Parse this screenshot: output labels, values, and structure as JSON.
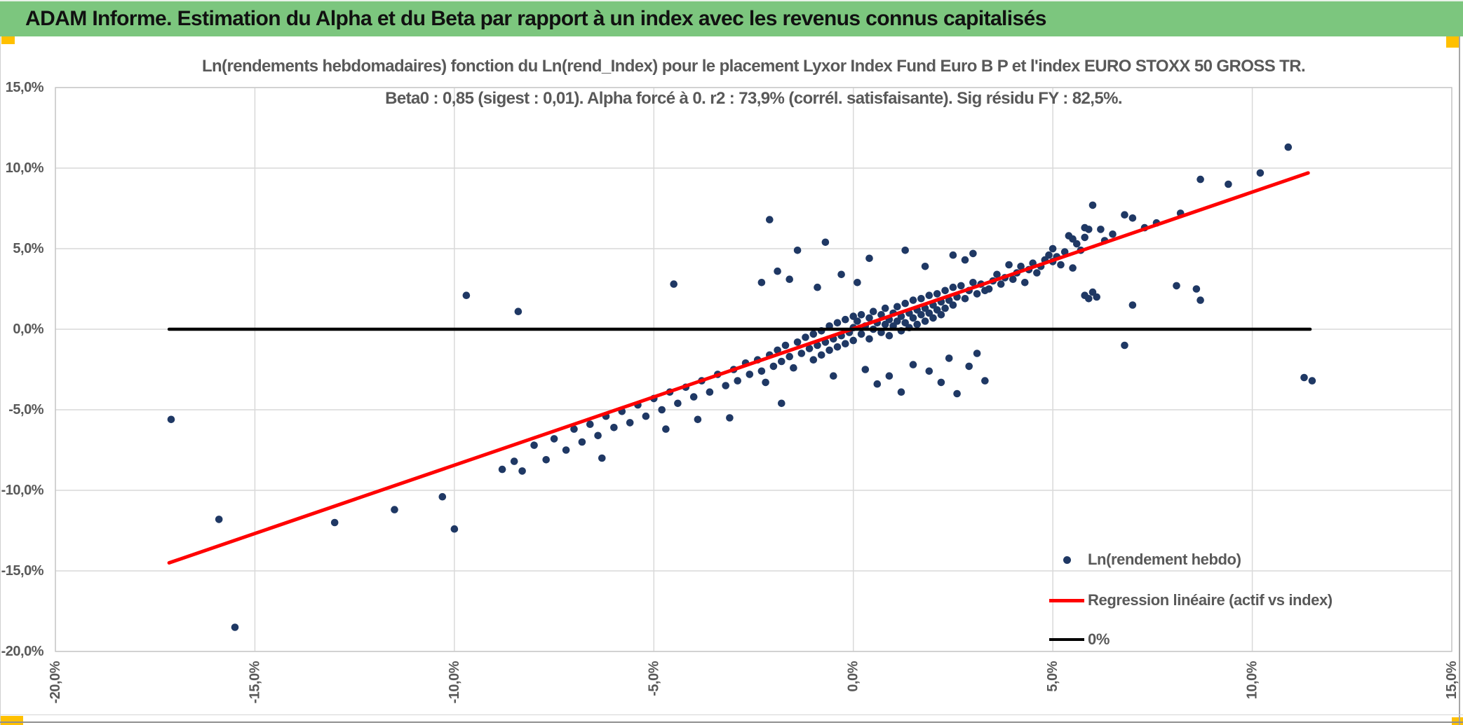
{
  "window": {
    "header_title": "ADAM Informe. Estimation du Alpha et du Beta par rapport à un index avec les revenus connus capitalisés"
  },
  "theme": {
    "header_green": "#7CC67E",
    "accent_orange": "#FFC000",
    "text_gray": "#595959",
    "grid_gray": "#D9D9D9",
    "border_gray": "#C9C9C9",
    "window_edge_gray": "#8F8F8F"
  },
  "chart_data": {
    "type": "scatter",
    "title_line1": "Ln(rendements hebdomadaires) fonction du Ln(rend_Index) pour le placement Lyxor Index Fund Euro B P et l'index EURO STOXX 50 GROSS TR.",
    "title_line2": "Beta0 : 0,85 (sigest : 0,01). Alpha forcé à 0. r2 : 73,9% (corrél. satisfaisante). Sig résidu FY : 82,5%.",
    "stats": {
      "beta0": "0,85",
      "sigest": "0,01",
      "alpha": "0",
      "r2": "73,9%",
      "sig_residu_fy": "82,5%"
    },
    "x_axis": {
      "min": -20,
      "max": 15,
      "step": 5,
      "unit": "%",
      "tick_values": [
        -20,
        -15,
        -10,
        -5,
        0,
        5,
        10,
        15
      ],
      "tick_labels": [
        "-20,0%",
        "-15,0%",
        "-10,0%",
        "-5,0%",
        "0,0%",
        "5,0%",
        "10,0%",
        "15,0%"
      ]
    },
    "y_axis": {
      "min": -20,
      "max": 15,
      "step": 5,
      "unit": "%",
      "tick_values": [
        15,
        10,
        5,
        0,
        -5,
        -10,
        -15,
        -20
      ],
      "tick_labels": [
        "15,0%",
        "10,0%",
        "5,0%",
        "0,0%",
        "-5,0%",
        "-10,0%",
        "-15,0%",
        "-20,0%"
      ]
    },
    "grid": true,
    "legend_position": "inside-bottom-right",
    "series": [
      {
        "name": "Ln(rendement hebdo)",
        "type": "scatter",
        "color": "#1F3864",
        "points": [
          [
            -17.1,
            -5.6
          ],
          [
            -15.9,
            -11.8
          ],
          [
            -15.5,
            -18.5
          ],
          [
            -13.0,
            -12.0
          ],
          [
            -11.5,
            -11.2
          ],
          [
            -10.3,
            -10.4
          ],
          [
            -10.0,
            -12.4
          ],
          [
            -9.7,
            2.1
          ],
          [
            -8.4,
            1.1
          ],
          [
            -8.8,
            -8.7
          ],
          [
            -8.5,
            -8.2
          ],
          [
            -8.3,
            -8.8
          ],
          [
            -8.0,
            -7.2
          ],
          [
            -7.7,
            -8.1
          ],
          [
            -7.5,
            -6.8
          ],
          [
            -7.2,
            -7.5
          ],
          [
            -7.0,
            -6.2
          ],
          [
            -6.8,
            -7.0
          ],
          [
            -6.6,
            -5.9
          ],
          [
            -6.4,
            -6.6
          ],
          [
            -6.3,
            -8.0
          ],
          [
            -6.2,
            -5.4
          ],
          [
            -6.0,
            -6.1
          ],
          [
            -5.8,
            -5.1
          ],
          [
            -5.6,
            -5.8
          ],
          [
            -5.4,
            -4.7
          ],
          [
            -5.2,
            -5.4
          ],
          [
            -5.0,
            -4.3
          ],
          [
            -4.8,
            -5.0
          ],
          [
            -4.7,
            -6.2
          ],
          [
            -4.6,
            -3.9
          ],
          [
            -4.5,
            2.8
          ],
          [
            -4.4,
            -4.6
          ],
          [
            -4.2,
            -3.6
          ],
          [
            -4.0,
            -4.2
          ],
          [
            -3.9,
            -5.6
          ],
          [
            -3.8,
            -3.2
          ],
          [
            -3.6,
            -3.9
          ],
          [
            -3.4,
            -2.8
          ],
          [
            -3.2,
            -3.5
          ],
          [
            -3.1,
            -5.5
          ],
          [
            -3.0,
            -2.5
          ],
          [
            -2.9,
            -3.2
          ],
          [
            -2.7,
            -2.1
          ],
          [
            -2.6,
            -2.8
          ],
          [
            -2.4,
            -1.9
          ],
          [
            -2.3,
            -2.6
          ],
          [
            -2.2,
            -3.3
          ],
          [
            -2.1,
            -1.6
          ],
          [
            -2.0,
            -2.3
          ],
          [
            -1.9,
            -1.3
          ],
          [
            -1.8,
            -4.6
          ],
          [
            -1.8,
            -2.0
          ],
          [
            -1.7,
            -1.0
          ],
          [
            -1.6,
            -1.7
          ],
          [
            -1.5,
            -2.4
          ],
          [
            -1.4,
            -0.8
          ],
          [
            -1.3,
            -1.5
          ],
          [
            -1.2,
            -0.5
          ],
          [
            -1.1,
            -1.2
          ],
          [
            -1.0,
            -1.9
          ],
          [
            -1.0,
            -0.3
          ],
          [
            -0.9,
            -1.0
          ],
          [
            -0.8,
            -0.1
          ],
          [
            -0.8,
            -1.6
          ],
          [
            -0.7,
            -0.8
          ],
          [
            -0.6,
            0.2
          ],
          [
            -0.6,
            -1.3
          ],
          [
            -0.5,
            -0.6
          ],
          [
            -0.4,
            0.4
          ],
          [
            -0.4,
            -1.1
          ],
          [
            -0.3,
            -0.4
          ],
          [
            -0.2,
            0.6
          ],
          [
            -0.2,
            -0.9
          ],
          [
            -0.1,
            -0.2
          ],
          [
            0.0,
            0.8
          ],
          [
            0.0,
            -0.7
          ],
          [
            0.0,
            0.1
          ],
          [
            -2.1,
            6.8
          ],
          [
            -0.7,
            5.4
          ],
          [
            -1.4,
            4.9
          ],
          [
            -1.9,
            3.6
          ],
          [
            -1.6,
            3.1
          ],
          [
            -2.3,
            2.9
          ],
          [
            0.4,
            4.4
          ],
          [
            1.3,
            4.9
          ],
          [
            2.5,
            4.6
          ],
          [
            2.8,
            4.3
          ],
          [
            3.0,
            4.7
          ],
          [
            -0.3,
            3.4
          ],
          [
            0.1,
            2.9
          ],
          [
            -0.9,
            2.6
          ],
          [
            1.8,
            3.9
          ],
          [
            0.6,
            -3.4
          ],
          [
            1.2,
            -3.9
          ],
          [
            2.2,
            -3.3
          ],
          [
            2.6,
            -4.0
          ],
          [
            3.3,
            -3.2
          ],
          [
            1.9,
            -2.6
          ],
          [
            2.9,
            -2.3
          ],
          [
            0.9,
            -2.9
          ],
          [
            1.5,
            -2.2
          ],
          [
            2.4,
            -1.8
          ],
          [
            3.1,
            -1.5
          ],
          [
            0.3,
            -2.5
          ],
          [
            -0.5,
            -2.9
          ],
          [
            0.1,
            0.5
          ],
          [
            0.2,
            -0.3
          ],
          [
            0.2,
            0.9
          ],
          [
            0.3,
            0.2
          ],
          [
            0.4,
            -0.6
          ],
          [
            0.4,
            0.7
          ],
          [
            0.5,
            0.0
          ],
          [
            0.5,
            1.1
          ],
          [
            0.6,
            0.4
          ],
          [
            0.7,
            -0.2
          ],
          [
            0.7,
            0.9
          ],
          [
            0.8,
            0.3
          ],
          [
            0.8,
            1.3
          ],
          [
            0.9,
            0.6
          ],
          [
            0.9,
            -0.4
          ],
          [
            1.0,
            1.0
          ],
          [
            1.0,
            0.2
          ],
          [
            1.1,
            1.4
          ],
          [
            1.1,
            0.5
          ],
          [
            1.2,
            -0.1
          ],
          [
            1.2,
            0.8
          ],
          [
            1.3,
            1.6
          ],
          [
            1.3,
            0.4
          ],
          [
            1.4,
            1.0
          ],
          [
            1.4,
            0.1
          ],
          [
            1.5,
            1.8
          ],
          [
            1.5,
            0.7
          ],
          [
            1.6,
            1.2
          ],
          [
            1.6,
            0.3
          ],
          [
            1.7,
            1.9
          ],
          [
            1.7,
            0.9
          ],
          [
            1.8,
            1.3
          ],
          [
            1.8,
            0.5
          ],
          [
            1.9,
            2.1
          ],
          [
            1.9,
            1.0
          ],
          [
            2.0,
            1.5
          ],
          [
            2.0,
            0.7
          ],
          [
            2.1,
            2.2
          ],
          [
            2.1,
            1.2
          ],
          [
            2.2,
            1.7
          ],
          [
            2.2,
            0.9
          ],
          [
            2.3,
            2.4
          ],
          [
            2.3,
            1.3
          ],
          [
            2.4,
            1.8
          ],
          [
            2.5,
            2.6
          ],
          [
            2.5,
            1.5
          ],
          [
            2.6,
            2.0
          ],
          [
            2.7,
            2.7
          ],
          [
            2.8,
            1.9
          ],
          [
            2.9,
            2.4
          ],
          [
            3.0,
            2.9
          ],
          [
            3.1,
            2.2
          ],
          [
            3.2,
            2.8
          ],
          [
            3.3,
            2.4
          ],
          [
            3.4,
            2.5
          ],
          [
            3.5,
            3.0
          ],
          [
            3.6,
            3.4
          ],
          [
            3.7,
            2.8
          ],
          [
            3.8,
            3.2
          ],
          [
            3.9,
            4.0
          ],
          [
            4.0,
            3.1
          ],
          [
            4.1,
            3.5
          ],
          [
            4.2,
            3.9
          ],
          [
            4.3,
            2.9
          ],
          [
            4.4,
            3.7
          ],
          [
            4.5,
            4.1
          ],
          [
            4.6,
            3.5
          ],
          [
            4.7,
            3.9
          ],
          [
            4.8,
            4.3
          ],
          [
            4.9,
            4.6
          ],
          [
            5.0,
            4.2
          ],
          [
            5.1,
            4.5
          ],
          [
            5.2,
            4.0
          ],
          [
            5.0,
            5.0
          ],
          [
            5.4,
            5.8
          ],
          [
            5.5,
            5.6
          ],
          [
            5.6,
            5.3
          ],
          [
            5.8,
            6.3
          ],
          [
            5.9,
            6.2
          ],
          [
            6.2,
            6.2
          ],
          [
            5.8,
            5.7
          ],
          [
            6.0,
            7.7
          ],
          [
            6.8,
            7.1
          ],
          [
            7.0,
            6.9
          ],
          [
            8.2,
            7.2
          ],
          [
            8.7,
            9.3
          ],
          [
            9.4,
            9.0
          ],
          [
            10.2,
            9.7
          ],
          [
            10.9,
            11.3
          ],
          [
            5.5,
            3.8
          ],
          [
            5.8,
            2.1
          ],
          [
            5.9,
            1.9
          ],
          [
            6.0,
            2.3
          ],
          [
            6.1,
            2.0
          ],
          [
            6.8,
            -1.0
          ],
          [
            7.0,
            1.5
          ],
          [
            8.1,
            2.7
          ],
          [
            8.6,
            2.5
          ],
          [
            8.7,
            1.8
          ],
          [
            11.3,
            -3.0
          ],
          [
            11.5,
            -3.2
          ],
          [
            5.3,
            4.8
          ],
          [
            5.7,
            4.9
          ],
          [
            6.3,
            5.5
          ],
          [
            6.5,
            5.9
          ],
          [
            7.3,
            6.3
          ],
          [
            7.6,
            6.6
          ]
        ]
      },
      {
        "name": "Regression linéaire (actif vs index)",
        "type": "line",
        "color": "#FF0000",
        "points": [
          [
            -17.15,
            -14.5
          ],
          [
            11.4,
            9.7
          ]
        ]
      },
      {
        "name": "0%",
        "type": "line",
        "color": "#000000",
        "points": [
          [
            -17.15,
            0
          ],
          [
            11.45,
            0
          ]
        ]
      }
    ]
  }
}
